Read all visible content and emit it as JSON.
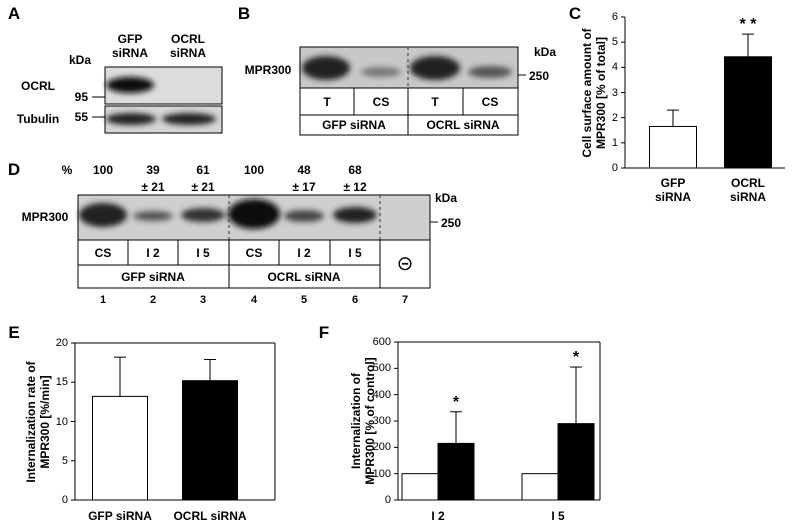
{
  "panels": {
    "a": {
      "label": "A",
      "unit": "kDa",
      "lanes": [
        "GFP siRNA",
        "OCRL siRNA"
      ],
      "rows": [
        {
          "name": "OCRL",
          "marker": 95
        },
        {
          "name": "Tubulin",
          "marker": 55
        }
      ]
    },
    "b": {
      "label": "B",
      "protein": "MPR300",
      "unit": "kDa",
      "marker": 250,
      "lanes": [
        "T",
        "CS",
        "T",
        "CS"
      ],
      "groups": [
        "GFP siRNA",
        "OCRL siRNA"
      ]
    },
    "d": {
      "label": "D",
      "percent_label": "%",
      "percent": [
        {
          "value": 100
        },
        {
          "value": 39,
          "sd": "± 21"
        },
        {
          "value": 61,
          "sd": "± 21"
        },
        {
          "value": 100
        },
        {
          "value": 48,
          "sd": "± 17"
        },
        {
          "value": 68,
          "sd": "± 12"
        }
      ],
      "protein": "MPR300",
      "unit": "kDa",
      "marker": 250,
      "lanes": [
        "CS",
        "I 2",
        "I 5",
        "CS",
        "I 2",
        "I 5"
      ],
      "groups": [
        "GFP siRNA",
        "OCRL siRNA"
      ],
      "control": "⊝",
      "lane_numbers": [
        1,
        2,
        3,
        4,
        5,
        6,
        7
      ]
    }
  },
  "chart_data": [
    {
      "type": "bar",
      "label": "C",
      "ylabel": [
        "Cell surface amount of",
        "MPR300 [% of total]"
      ],
      "categories": [
        "GFP siRNA",
        "OCRL siRNA"
      ],
      "series": [
        {
          "colors": [
            "#ffffff",
            "#000000"
          ],
          "values": [
            1.65,
            4.42
          ],
          "errors": [
            0.65,
            0.9
          ],
          "significance": [
            null,
            "* *"
          ]
        }
      ],
      "ylim": [
        0,
        6
      ],
      "yticks": [
        0,
        1,
        2,
        3,
        4,
        5,
        6
      ],
      "box": false
    },
    {
      "type": "bar",
      "label": "E",
      "ylabel": [
        "Internalization rate of",
        "MPR300 [%/min]"
      ],
      "categories": [
        "GFP siRNA",
        "OCRL siRNA"
      ],
      "series": [
        {
          "colors": [
            "#ffffff",
            "#000000"
          ],
          "values": [
            13.2,
            15.2
          ],
          "errors": [
            5.0,
            2.7
          ]
        }
      ],
      "ylim": [
        0,
        20
      ],
      "yticks": [
        0,
        5,
        10,
        15,
        20
      ],
      "box": true
    },
    {
      "type": "bar",
      "label": "F",
      "ylabel": [
        "Internalization of",
        "MPR300 [% of control]"
      ],
      "categories": [
        "I 2",
        "I 5"
      ],
      "series": [
        {
          "color": "#ffffff",
          "values": [
            100,
            100
          ]
        },
        {
          "color": "#000000",
          "values": [
            215,
            290
          ],
          "errors": [
            120,
            215
          ],
          "significance": [
            "*",
            "*"
          ]
        }
      ],
      "ylim": [
        0,
        600
      ],
      "yticks": [
        0,
        100,
        200,
        300,
        400,
        500,
        600
      ],
      "box": true
    }
  ]
}
